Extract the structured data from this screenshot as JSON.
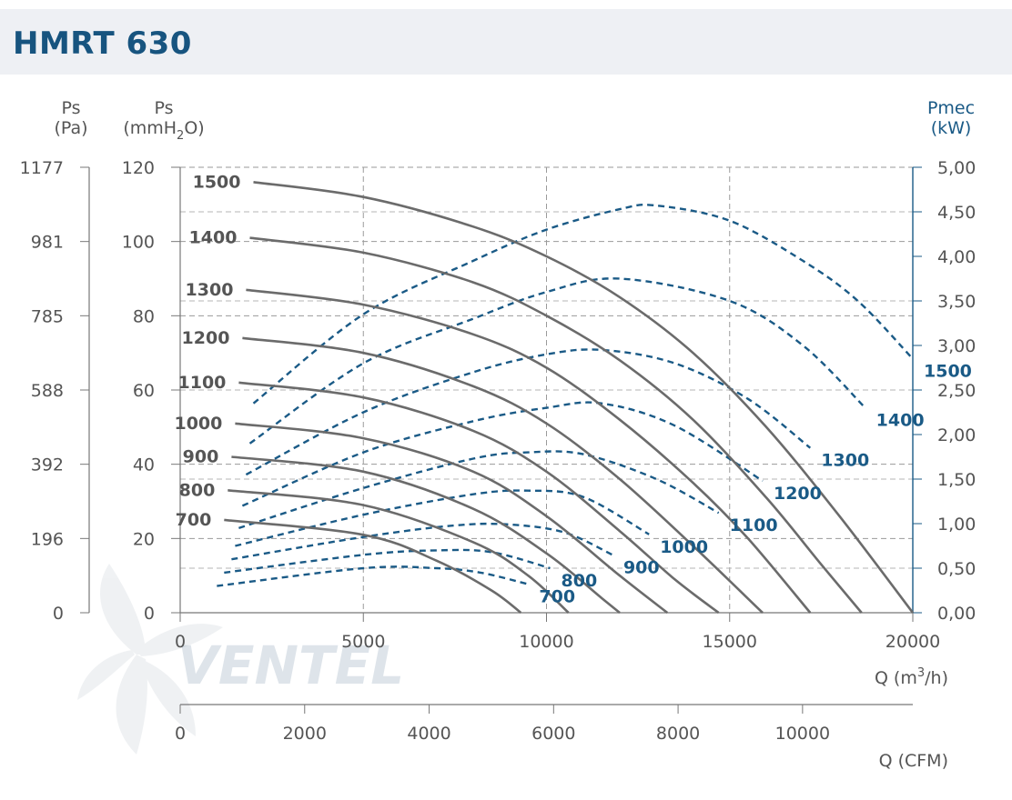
{
  "header": {
    "title": "HMRT 630"
  },
  "chart_data": {
    "type": "line",
    "title": "HMRT 630",
    "watermark": "VENTEL",
    "axes": {
      "left_pa": {
        "label_top": "Ps",
        "label_bottom": "(Pa)",
        "ticks": [
          "1177",
          "981",
          "785",
          "588",
          "392",
          "196",
          "0"
        ]
      },
      "left_mm": {
        "label_top": "Ps",
        "label_bottom_pre": "(mmH",
        "label_bottom_sub": "2",
        "label_bottom_post": "O)",
        "ticks": [
          "120",
          "100",
          "80",
          "60",
          "40",
          "20",
          "0"
        ],
        "ylim": [
          0,
          120
        ]
      },
      "right_kw": {
        "label_top": "Pmec",
        "label_bottom": "(kW)",
        "ticks": [
          "5,00",
          "4,50",
          "4,00",
          "3,50",
          "3,00",
          "2,50",
          "2,00",
          "1,50",
          "1,00",
          "0,50",
          "0,00"
        ],
        "ylim": [
          0,
          5
        ]
      },
      "x_m3h": {
        "label_pre": "Q (m",
        "label_sup": "3",
        "label_post": "/h)",
        "ticks": [
          "0",
          "5000",
          "10000",
          "15000",
          "20000"
        ],
        "xlim": [
          0,
          20000
        ]
      },
      "x_cfm": {
        "label": "Q (CFM)",
        "ticks": [
          "0",
          "2000",
          "4000",
          "6000",
          "8000",
          "10000"
        ]
      }
    },
    "grid": true,
    "pressure_series": [
      {
        "name": "1500",
        "x": [
          2000,
          5000,
          8000,
          10000,
          12000,
          14000,
          16000,
          18000,
          20000
        ],
        "y": [
          116,
          112,
          104,
          96,
          85,
          70,
          50,
          26,
          0
        ]
      },
      {
        "name": "1400",
        "x": [
          1900,
          5000,
          8000,
          10000,
          12000,
          14000,
          16000,
          17500,
          18600
        ],
        "y": [
          101,
          97,
          89,
          80,
          68,
          52,
          31,
          13,
          0
        ]
      },
      {
        "name": "1300",
        "x": [
          1800,
          5000,
          8000,
          10000,
          12000,
          14000,
          15500,
          17200
        ],
        "y": [
          87,
          83,
          75,
          66,
          52,
          35,
          20,
          0
        ]
      },
      {
        "name": "1200",
        "x": [
          1700,
          5000,
          8000,
          10000,
          12000,
          14000,
          15900
        ],
        "y": [
          74,
          70,
          61,
          51,
          36,
          18,
          0
        ]
      },
      {
        "name": "1100",
        "x": [
          1600,
          5000,
          8000,
          10000,
          12000,
          13500,
          14700
        ],
        "y": [
          62,
          58,
          49,
          38,
          22,
          9,
          0
        ]
      },
      {
        "name": "1000",
        "x": [
          1500,
          5000,
          8000,
          10000,
          12000,
          13300
        ],
        "y": [
          51,
          47,
          38,
          26,
          10,
          0
        ]
      },
      {
        "name": "900",
        "x": [
          1400,
          5000,
          8000,
          10000,
          11500,
          12000
        ],
        "y": [
          42,
          38,
          28,
          16,
          4,
          0
        ]
      },
      {
        "name": "800",
        "x": [
          1300,
          5000,
          8000,
          9500,
          10600
        ],
        "y": [
          33,
          29,
          19,
          10,
          0
        ]
      },
      {
        "name": "700",
        "x": [
          1200,
          5000,
          7000,
          8500,
          9300
        ],
        "y": [
          25,
          21,
          14,
          6,
          0
        ]
      }
    ],
    "power_series": [
      {
        "name": "1500",
        "x": [
          2000,
          5000,
          8000,
          10000,
          12000,
          13000,
          15000,
          17000,
          18500,
          20000
        ],
        "y": [
          2.35,
          3.35,
          3.95,
          4.3,
          4.53,
          4.57,
          4.4,
          3.95,
          3.5,
          2.85
        ]
      },
      {
        "name": "1400",
        "x": [
          1900,
          5000,
          8000,
          10000,
          12000,
          15000,
          17000,
          18700
        ],
        "y": [
          1.9,
          2.8,
          3.3,
          3.6,
          3.75,
          3.5,
          3.0,
          2.3
        ]
      },
      {
        "name": "1300",
        "x": [
          1800,
          5000,
          8000,
          10000,
          11500,
          13500,
          15500,
          17200
        ],
        "y": [
          1.55,
          2.25,
          2.7,
          2.9,
          2.95,
          2.8,
          2.4,
          1.85
        ]
      },
      {
        "name": "1200",
        "x": [
          1700,
          5000,
          8000,
          10000,
          11500,
          13500,
          15900
        ],
        "y": [
          1.2,
          1.8,
          2.15,
          2.3,
          2.35,
          2.1,
          1.48
        ]
      },
      {
        "name": "1100",
        "x": [
          1600,
          5000,
          8000,
          9500,
          11000,
          13000,
          14700
        ],
        "y": [
          0.95,
          1.4,
          1.73,
          1.8,
          1.78,
          1.5,
          1.12
        ]
      },
      {
        "name": "1000",
        "x": [
          1500,
          5000,
          8000,
          9500,
          11000,
          12800
        ],
        "y": [
          0.75,
          1.1,
          1.33,
          1.37,
          1.3,
          0.88
        ]
      },
      {
        "name": "900",
        "x": [
          1400,
          5000,
          7500,
          9000,
          10500,
          11800
        ],
        "y": [
          0.6,
          0.85,
          0.98,
          0.99,
          0.9,
          0.65
        ]
      },
      {
        "name": "800",
        "x": [
          1200,
          5000,
          7000,
          8500,
          10100
        ],
        "y": [
          0.45,
          0.65,
          0.7,
          0.68,
          0.5
        ]
      },
      {
        "name": "700",
        "x": [
          1000,
          5000,
          7000,
          8200,
          9500
        ],
        "y": [
          0.3,
          0.5,
          0.5,
          0.45,
          0.32
        ]
      }
    ]
  }
}
